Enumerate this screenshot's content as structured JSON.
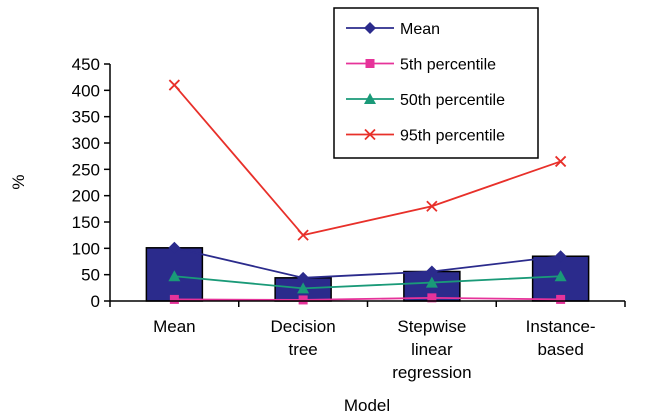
{
  "chart_data": {
    "type": "bar+line",
    "title": "",
    "xlabel": "Model",
    "ylabel": "%",
    "ylim": [
      0,
      450
    ],
    "yticks": [
      0,
      50,
      100,
      150,
      200,
      250,
      300,
      350,
      400,
      450
    ],
    "categories": [
      [
        "Mean"
      ],
      [
        "Decision",
        "tree"
      ],
      [
        "Stepwise",
        "linear",
        "regression"
      ],
      [
        "Instance-",
        "based"
      ]
    ],
    "bars": {
      "values": [
        101,
        44,
        56,
        85
      ],
      "color": "#2b2b8c"
    },
    "series": [
      {
        "name": "Mean",
        "values": [
          101,
          44,
          56,
          85
        ],
        "color": "#2b2b8c",
        "marker": "diamond"
      },
      {
        "name": "5th percentile",
        "values": [
          3,
          2,
          6,
          3
        ],
        "color": "#e6339a",
        "marker": "square"
      },
      {
        "name": "50th percentile",
        "values": [
          47,
          24,
          35,
          47
        ],
        "color": "#1a9a78",
        "marker": "triangle"
      },
      {
        "name": "95th percentile",
        "values": [
          410,
          125,
          180,
          265
        ],
        "color": "#e8302a",
        "marker": "x"
      }
    ],
    "legend": {
      "position": "top-right"
    },
    "grid": false
  }
}
